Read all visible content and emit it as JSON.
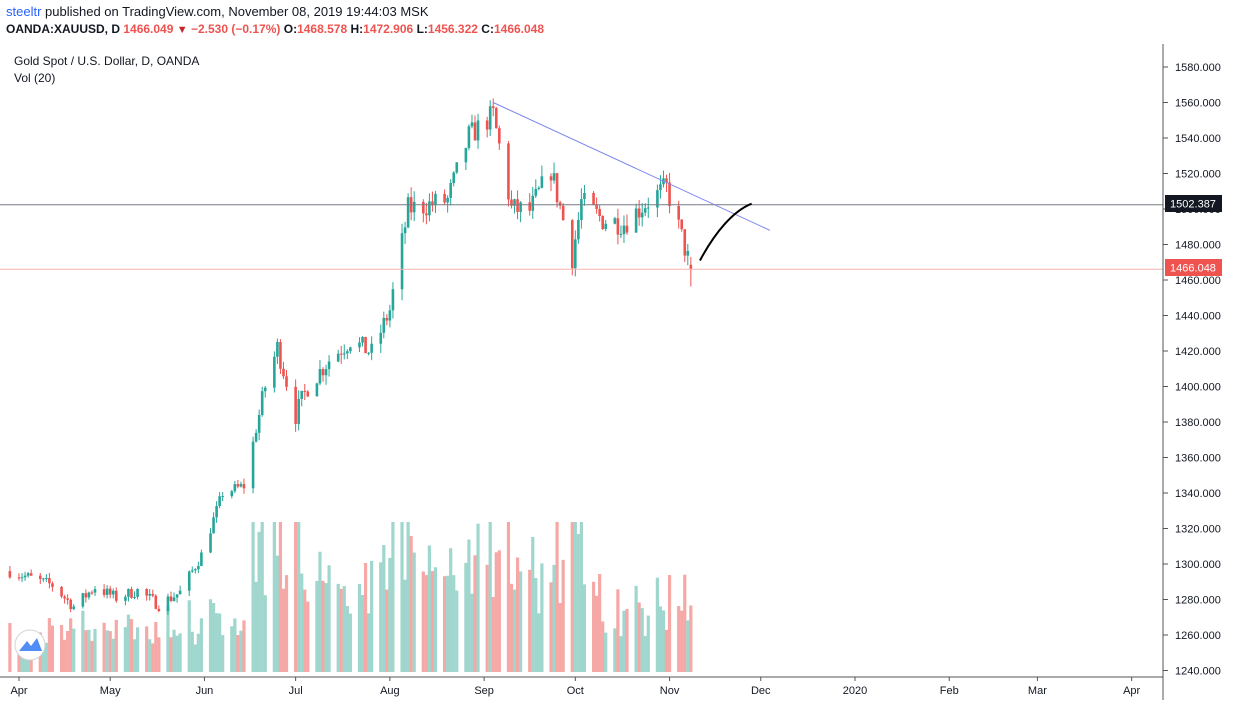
{
  "header": {
    "author": "steeltr",
    "published": " published on TradingView.com, November 08, 2019 19:44:03 MSK",
    "symbol": "OANDA:XAUUSD, D",
    "last": "1466.049",
    "change": "−2.530 (−0.17%)",
    "o_label": "O:",
    "o": "1468.578",
    "h_label": "H:",
    "h": "1472.906",
    "l_label": "L:",
    "l": "1456.322",
    "c_label": "C:",
    "c": "1466.048"
  },
  "legend": {
    "title": "Gold Spot / U.S. Dollar, D, OANDA",
    "volume": "Vol (20)"
  },
  "colors": {
    "up": "#26a69a",
    "down": "#ef5350",
    "vol_up": "#9fd6cd",
    "vol_down": "#f5a8a6",
    "trendline": "#7b83eb",
    "level_line": "#787b86"
  },
  "price_boxes": {
    "level": "1502.387",
    "last": "1466.048"
  },
  "chart_data": {
    "type": "candlestick",
    "ylim": [
      1237,
      1590
    ],
    "y_ticks": [
      1580,
      1560,
      1540,
      1520,
      1500,
      1480,
      1460,
      1440,
      1420,
      1400,
      1380,
      1360,
      1340,
      1320,
      1300,
      1280,
      1260,
      1240
    ],
    "y_tick_labels": [
      "1580.000",
      "1560.000",
      "1540.000",
      "1520.000",
      "1500.000",
      "1480.000",
      "1460.000",
      "1440.000",
      "1420.000",
      "1400.000",
      "1380.000",
      "1360.000",
      "1340.000",
      "1320.000",
      "1300.000",
      "1280.000",
      "1260.000",
      "1240.000"
    ],
    "x_labels": [
      "Apr",
      "May",
      "Jun",
      "Jul",
      "Aug",
      "Sep",
      "Oct",
      "Nov",
      "Dec",
      "2020",
      "Feb",
      "Mar",
      "Apr"
    ],
    "x_label_dates": [
      "2019-04-01",
      "2019-05-01",
      "2019-06-01",
      "2019-07-01",
      "2019-08-01",
      "2019-09-01",
      "2019-10-01",
      "2019-11-01",
      "2019-12-01",
      "2020-01-01",
      "2020-02-01",
      "2020-03-01",
      "2020-04-01"
    ],
    "close_anchors": [
      [
        "2019-03-29",
        1296
      ],
      [
        "2019-04-05",
        1292
      ],
      [
        "2019-04-12",
        1288
      ],
      [
        "2019-04-19",
        1276
      ],
      [
        "2019-04-26",
        1287
      ],
      [
        "2019-05-03",
        1281
      ],
      [
        "2019-05-10",
        1285
      ],
      [
        "2019-05-17",
        1277
      ],
      [
        "2019-05-24",
        1284
      ],
      [
        "2019-05-31",
        1305
      ],
      [
        "2019-06-07",
        1340
      ],
      [
        "2019-06-14",
        1344
      ],
      [
        "2019-06-21",
        1400
      ],
      [
        "2019-06-25",
        1422
      ],
      [
        "2019-07-01",
        1384
      ],
      [
        "2019-07-05",
        1400
      ],
      [
        "2019-07-12",
        1415
      ],
      [
        "2019-07-19",
        1426
      ],
      [
        "2019-07-26",
        1419
      ],
      [
        "2019-08-01",
        1443
      ],
      [
        "2019-08-07",
        1500
      ],
      [
        "2019-08-13",
        1502
      ],
      [
        "2019-08-20",
        1505
      ],
      [
        "2019-08-27",
        1541
      ],
      [
        "2019-09-04",
        1553
      ],
      [
        "2019-09-10",
        1500
      ],
      [
        "2019-09-16",
        1499
      ],
      [
        "2019-09-23",
        1522
      ],
      [
        "2019-09-30",
        1473
      ],
      [
        "2019-10-03",
        1504
      ],
      [
        "2019-10-10",
        1494
      ],
      [
        "2019-10-17",
        1492
      ],
      [
        "2019-10-24",
        1503
      ],
      [
        "2019-10-31",
        1512
      ],
      [
        "2019-11-05",
        1484
      ],
      [
        "2019-11-08",
        1466
      ]
    ],
    "last_ohlc": {
      "date": "2019-11-08",
      "o": 1468.578,
      "h": 1472.906,
      "l": 1456.322,
      "c": 1466.048
    },
    "level_line": 1502.387,
    "trendline": [
      [
        "2019-09-04",
        1560
      ],
      [
        "2019-12-04",
        1488
      ]
    ],
    "projection": [
      [
        "2019-11-11",
        1471
      ],
      [
        "2019-11-16",
        1487
      ],
      [
        "2019-11-22",
        1499
      ],
      [
        "2019-11-28",
        1503
      ]
    ]
  }
}
